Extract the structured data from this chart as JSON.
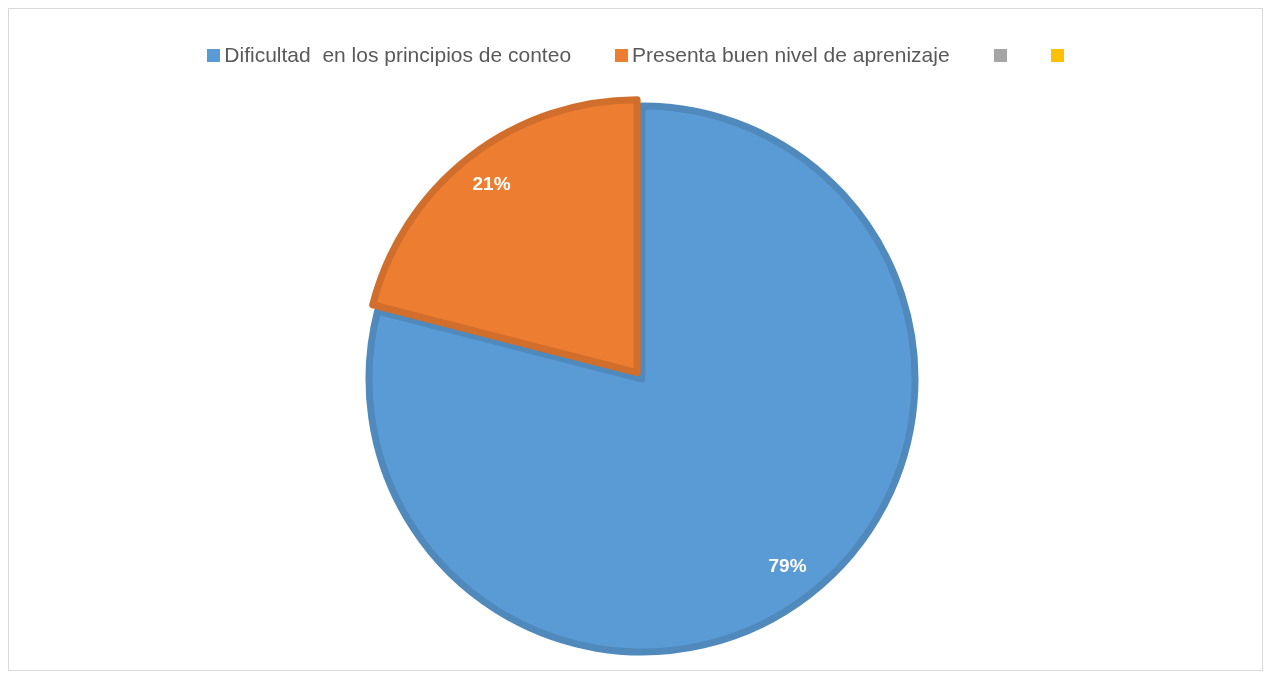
{
  "chart_data": {
    "type": "pie",
    "categories": [
      "Dificultad  en los principios de conteo",
      "Presenta buen nivel de aprenizaje",
      null,
      null
    ],
    "values": [
      79,
      21,
      0,
      0
    ],
    "colors": [
      "#5b9bd5",
      "#ed7d31",
      "#a5a5a5",
      "#ffc000"
    ],
    "value_labels": [
      "79%",
      "21%",
      null,
      null
    ],
    "legend": "top"
  }
}
